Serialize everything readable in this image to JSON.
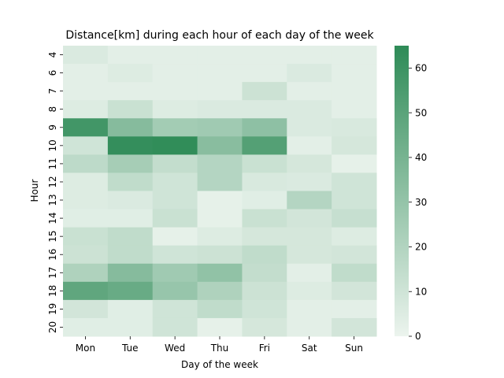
{
  "chart_data": {
    "type": "heatmap",
    "title": "Distance[km] during each hour of each day of the week",
    "xlabel": "Day of the week",
    "ylabel": "Hour",
    "x_categories": [
      "Mon",
      "Tue",
      "Wed",
      "Thu",
      "Fri",
      "Sat",
      "Sun"
    ],
    "y_categories": [
      "4",
      "6",
      "7",
      "8",
      "9",
      "10",
      "11",
      "12",
      "13",
      "14",
      "15",
      "16",
      "17",
      "18",
      "19",
      "20"
    ],
    "values": [
      [
        6,
        3,
        3,
        3,
        3,
        3,
        3
      ],
      [
        3,
        5,
        3,
        3,
        3,
        6,
        3
      ],
      [
        3,
        3,
        3,
        3,
        11,
        3,
        3
      ],
      [
        5,
        12,
        5,
        6,
        6,
        6,
        3
      ],
      [
        58,
        35,
        25,
        26,
        32,
        6,
        7
      ],
      [
        10,
        63,
        64,
        34,
        52,
        3,
        8
      ],
      [
        16,
        24,
        14,
        19,
        12,
        8,
        2
      ],
      [
        5,
        15,
        10,
        19,
        7,
        6,
        10
      ],
      [
        5,
        6,
        10,
        2,
        4,
        19,
        10
      ],
      [
        4,
        4,
        12,
        2,
        12,
        9,
        13
      ],
      [
        12,
        15,
        2,
        5,
        8,
        8,
        5
      ],
      [
        11,
        15,
        10,
        11,
        15,
        8,
        9
      ],
      [
        21,
        35,
        26,
        31,
        14,
        3,
        15
      ],
      [
        48,
        45,
        29,
        21,
        11,
        5,
        9
      ],
      [
        9,
        4,
        10,
        15,
        10,
        3,
        3
      ],
      [
        4,
        4,
        10,
        2,
        8,
        3,
        9
      ]
    ],
    "vmin": 0,
    "vmax": 65,
    "colorbar_ticks": [
      0,
      10,
      20,
      30,
      40,
      50,
      60
    ],
    "color_low": "#ecf4ee",
    "color_high": "#2e8b57"
  }
}
